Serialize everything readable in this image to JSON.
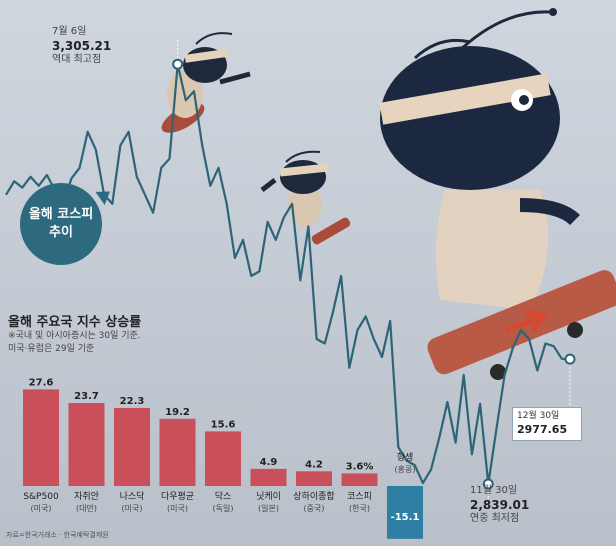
{
  "badge": {
    "line1": "올해 코스피",
    "line2": "추이"
  },
  "kospi_high": {
    "date": "7월 6일",
    "value": "3,305.21",
    "note": "역대 최고점"
  },
  "kospi_low": {
    "date": "11월 30일",
    "value": "2,839.01",
    "note": "연중 최저점"
  },
  "kospi_last": {
    "date": "12월 30일",
    "value": "2977.65"
  },
  "bar_section": {
    "title": "올해 주요국 지수 상승률",
    "note_line1": "※국내 및 아시아증시는 30일 기준.",
    "note_line2": "미국·유럽은 29일 기준"
  },
  "source": "자료=한국거래소 · 한국예탁결제원",
  "colors": {
    "background": "#c7ced7",
    "kospi_line": "#2d6478",
    "bar_positive": "#c9505a",
    "bar_negative": "#2f7ea3"
  },
  "chart_data": [
    {
      "type": "line",
      "series": [
        {
          "name": "코스피",
          "values": [
            3160,
            3175,
            3168,
            3180,
            3170,
            3182,
            3165,
            3150,
            3178,
            3190,
            3230,
            3210,
            3160,
            3150,
            3215,
            3230,
            3180,
            3160,
            3140,
            3190,
            3200,
            3305,
            3265,
            3275,
            3215,
            3170,
            3190,
            3150,
            3090,
            3110,
            3070,
            3075,
            3130,
            3110,
            3135,
            3150,
            3065,
            3125,
            3000,
            2995,
            3030,
            3070,
            2968,
            3010,
            3025,
            3000,
            2980,
            3020,
            2880,
            2865,
            2860,
            2840,
            2855,
            2890,
            2930,
            2885,
            2960,
            2872,
            2928,
            2839,
            2900,
            2960,
            2990,
            3010,
            3000,
            2965,
            2995,
            2992,
            2978,
            2977.65
          ]
        }
      ]
    },
    {
      "type": "bar",
      "categories": [
        "S&P500",
        "자취안",
        "나스닥",
        "다우평균",
        "닥스",
        "닛케이",
        "상하이종합",
        "코스피",
        "항셍"
      ],
      "sublabels": [
        "(미국)",
        "(대만)",
        "(미국)",
        "(미국)",
        "(독일)",
        "(일본)",
        "(중국)",
        "(한국)",
        "(홍콩)"
      ],
      "values": [
        27.6,
        23.7,
        22.3,
        19.2,
        15.6,
        4.9,
        4.2,
        3.6,
        -15.1
      ],
      "value_labels": [
        "27.6",
        "23.7",
        "22.3",
        "19.2",
        "15.6",
        "4.9",
        "4.2",
        "3.6%",
        "-15.1"
      ]
    }
  ]
}
